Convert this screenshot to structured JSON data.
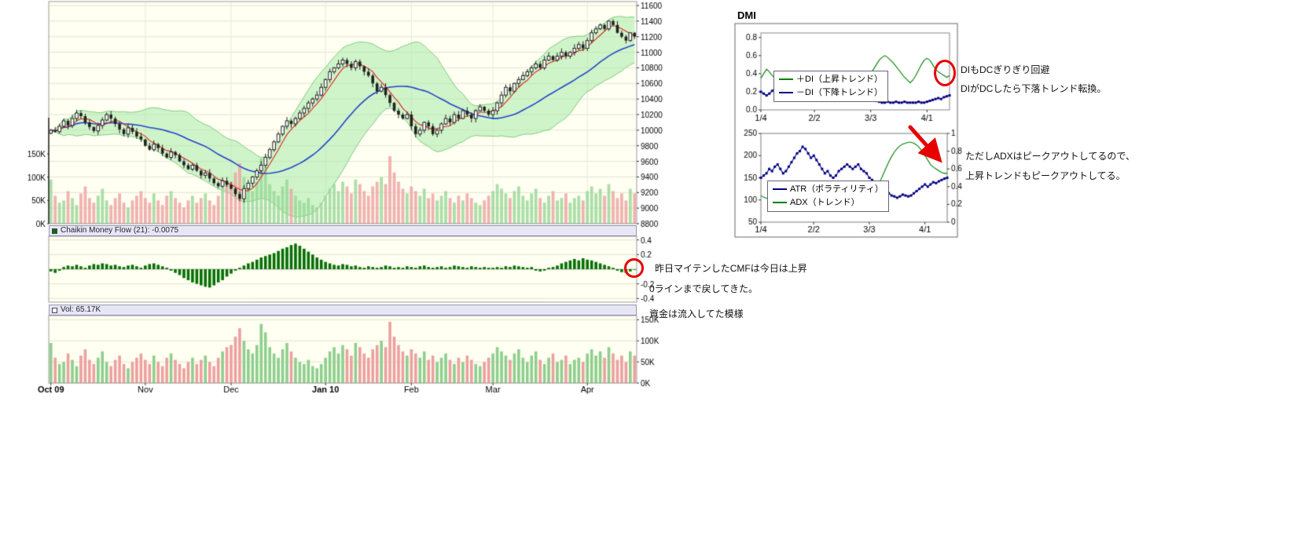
{
  "dmi": {
    "title": "DMI"
  },
  "panels": {
    "cmf": {
      "label": "Chaikin Money Flow (21): -0.0075"
    },
    "vol": {
      "label": "Vol: 65.17K"
    }
  },
  "annotations": {
    "dmi_note_line1": "DIもDCぎりぎり回避",
    "dmi_note_line2": "DIがDCしたら下落トレンド転換。",
    "adx_note_line1": "ただしADXはピークアウトしてるので、",
    "adx_note_line2": "上昇トレンドもピークアウトしてる。",
    "cmf_note_line1": "昨日マイテンしたCMFは今日は上昇",
    "cmf_note_line2": "0ラインまで戻してきた。",
    "cmf_note_line3": "資金は流入してた模様"
  },
  "x_axis": {
    "ticks": [
      {
        "label": "Oct 09",
        "index": 0,
        "bold": true
      },
      {
        "label": "Nov",
        "index": 22,
        "bold": false
      },
      {
        "label": "Dec",
        "index": 42,
        "bold": false
      },
      {
        "label": "Jan 10",
        "index": 64,
        "bold": true
      },
      {
        "label": "Feb",
        "index": 84,
        "bold": false
      },
      {
        "label": "Mar",
        "index": 103,
        "bold": false
      },
      {
        "label": "Apr",
        "index": 125,
        "bold": false
      }
    ]
  },
  "colors": {
    "panel_bg": "#fffff2",
    "grid": "#e4e4d0",
    "band_fill": "rgba(170,235,170,0.55)",
    "band_edge": "#7fcc7f",
    "ma_short": "#dd2222",
    "ma_long": "#2244cc",
    "vol_up": "rgba(150,215,150,0.8)",
    "vol_down": "rgba(238,160,160,0.8)",
    "cmf_bar": "#067006",
    "plus_di": "#008000",
    "minus_di": "#000080",
    "atr": "#000080",
    "adx": "#008000",
    "annotation_red": "#e60000",
    "header_bg": "#e6e6f5"
  },
  "chart_data": [
    {
      "type": "candlestick",
      "name": "price-with-bollinger-and-volume-overlay",
      "price_range": [
        8800,
        11600
      ],
      "price_ticks": [
        11600,
        11400,
        11200,
        11000,
        10800,
        10600,
        10400,
        10200,
        10000,
        9800,
        9600,
        9400,
        9200,
        9000,
        8800
      ],
      "vol_overlay_ticks": [
        {
          "label": "150K",
          "value": 150
        },
        {
          "label": "100K",
          "value": 100
        },
        {
          "label": "50K",
          "value": 50
        },
        {
          "label": "0K",
          "value": 0
        }
      ],
      "closes": [
        10000,
        9980,
        10050,
        10120,
        10060,
        10150,
        10220,
        10180,
        10100,
        10040,
        9990,
        10060,
        10130,
        10200,
        10150,
        10080,
        10010,
        9950,
        10030,
        9980,
        9920,
        9880,
        9800,
        9750,
        9820,
        9770,
        9700,
        9650,
        9720,
        9680,
        9600,
        9550,
        9500,
        9550,
        9480,
        9420,
        9450,
        9380,
        9320,
        9280,
        9350,
        9300,
        9250,
        9180,
        9120,
        9250,
        9320,
        9400,
        9480,
        9550,
        9650,
        9750,
        9850,
        9950,
        10050,
        10120,
        10080,
        10150,
        10220,
        10280,
        10350,
        10400,
        10450,
        10550,
        10650,
        10750,
        10800,
        10850,
        10900,
        10850,
        10800,
        10880,
        10820,
        10750,
        10700,
        10600,
        10500,
        10550,
        10450,
        10350,
        10250,
        10200,
        10150,
        10200,
        10050,
        9950,
        10000,
        10100,
        10050,
        9950,
        10000,
        10080,
        10150,
        10100,
        10200,
        10150,
        10250,
        10200,
        10150,
        10250,
        10300,
        10250,
        10200,
        10250,
        10350,
        10450,
        10550,
        10500,
        10600,
        10650,
        10700,
        10750,
        10800,
        10850,
        10800,
        10900,
        10950,
        10900,
        10950,
        11000,
        10950,
        11000,
        11050,
        11100,
        11050,
        11150,
        11250,
        11300,
        11350,
        11300,
        11400,
        11350,
        11250,
        11200,
        11150,
        11250,
        11200
      ],
      "volumes": [
        95,
        60,
        45,
        50,
        70,
        55,
        40,
        65,
        80,
        55,
        45,
        60,
        75,
        50,
        40,
        55,
        65,
        45,
        35,
        50,
        60,
        70,
        55,
        45,
        65,
        50,
        40,
        60,
        70,
        55,
        45,
        35,
        50,
        60,
        45,
        55,
        65,
        50,
        40,
        60,
        75,
        85,
        90,
        110,
        130,
        100,
        80,
        70,
        90,
        140,
        120,
        85,
        70,
        60,
        80,
        95,
        75,
        60,
        50,
        45,
        55,
        40,
        35,
        45,
        60,
        75,
        85,
        70,
        90,
        80,
        65,
        95,
        85,
        70,
        60,
        80,
        90,
        100,
        85,
        145,
        110,
        90,
        75,
        65,
        80,
        70,
        60,
        75,
        55,
        65,
        50,
        60,
        70,
        55,
        45,
        60,
        50,
        65,
        55,
        45,
        40,
        50,
        60,
        70,
        85,
        75,
        65,
        55,
        70,
        80,
        60,
        50,
        65,
        75,
        55,
        45,
        60,
        70,
        50,
        55,
        65,
        45,
        55,
        60,
        50,
        70,
        80,
        65,
        75,
        60,
        85,
        70,
        55,
        65,
        50,
        75,
        65
      ]
    },
    {
      "type": "bar",
      "name": "chaikin-money-flow",
      "title": "Chaikin Money Flow (21)",
      "last_value": -0.0075,
      "ylim": [
        -0.45,
        0.45
      ],
      "y_ticks": [
        {
          "label": "0.4",
          "value": 0.4
        },
        {
          "label": "0.2",
          "value": 0.2
        },
        {
          "label": "-0.2",
          "value": -0.2
        },
        {
          "label": "-0.4",
          "value": -0.4
        }
      ],
      "values": [
        -0.03,
        -0.05,
        -0.02,
        0.03,
        0.05,
        0.04,
        0.06,
        0.04,
        0.02,
        0.05,
        0.07,
        0.06,
        0.08,
        0.07,
        0.05,
        0.06,
        0.04,
        0.03,
        0.05,
        0.06,
        0.04,
        0.02,
        0.05,
        0.07,
        0.08,
        0.06,
        0.04,
        0.02,
        -0.02,
        -0.05,
        -0.08,
        -0.12,
        -0.15,
        -0.18,
        -0.2,
        -0.22,
        -0.24,
        -0.25,
        -0.22,
        -0.18,
        -0.15,
        -0.1,
        -0.06,
        -0.02,
        0.02,
        0.05,
        0.08,
        0.1,
        0.13,
        0.16,
        0.18,
        0.2,
        0.22,
        0.25,
        0.28,
        0.3,
        0.33,
        0.35,
        0.32,
        0.28,
        0.24,
        0.2,
        0.16,
        0.13,
        0.1,
        0.08,
        0.06,
        0.05,
        0.07,
        0.06,
        0.04,
        0.05,
        0.03,
        0.02,
        0.04,
        0.03,
        0.02,
        0.03,
        0.05,
        0.04,
        0.02,
        0.03,
        0.02,
        0.04,
        0.03,
        0.02,
        0.04,
        0.05,
        0.03,
        0.02,
        0.03,
        0.04,
        0.02,
        0.03,
        0.05,
        0.04,
        0.03,
        0.02,
        0.04,
        0.03,
        0.02,
        0.03,
        0.02,
        0.02,
        0.03,
        0.02,
        0.04,
        0.03,
        0.05,
        0.04,
        0.03,
        0.02,
        0.03,
        -0.02,
        -0.03,
        -0.02,
        0.02,
        0.03,
        0.05,
        0.08,
        0.1,
        0.12,
        0.14,
        0.12,
        0.15,
        0.13,
        0.12,
        0.1,
        0.08,
        0.06,
        0.04,
        0.02,
        -0.02,
        -0.04,
        -0.05,
        -0.03,
        -0.0075
      ]
    },
    {
      "type": "bar",
      "name": "volume-panel",
      "title": "Vol",
      "last_value_label": "65.17K",
      "ylim": [
        0,
        160
      ],
      "y_ticks": [
        {
          "label": "150K",
          "value": 150
        },
        {
          "label": "100K",
          "value": 100
        },
        {
          "label": "50K",
          "value": 50
        },
        {
          "label": "0K",
          "value": 0
        }
      ]
    },
    {
      "type": "line",
      "name": "dmi-di-chart",
      "ymax": 0.85,
      "y_ticks": [
        {
          "label": "0.8",
          "value": 0.8
        },
        {
          "label": "0.6",
          "value": 0.6
        },
        {
          "label": "0.4",
          "value": 0.4
        },
        {
          "label": "0.2",
          "value": 0.2
        },
        {
          "label": "0.0",
          "value": 0
        }
      ],
      "x_ticks": [
        {
          "label": "1/4",
          "index": 0
        },
        {
          "label": "2/2",
          "index": 19
        },
        {
          "label": "3/3",
          "index": 39
        },
        {
          "label": "4/1",
          "index": 59
        }
      ],
      "series": [
        {
          "name": "＋DI（上昇トレンド）",
          "color": "#008000",
          "marker": false,
          "values": [
            0.35,
            0.4,
            0.45,
            0.42,
            0.38,
            0.35,
            0.3,
            0.28,
            0.32,
            0.3,
            0.26,
            0.24,
            0.22,
            0.25,
            0.23,
            0.2,
            0.22,
            0.25,
            0.28,
            0.26,
            0.24,
            0.28,
            0.32,
            0.3,
            0.27,
            0.24,
            0.26,
            0.29,
            0.32,
            0.35,
            0.33,
            0.3,
            0.32,
            0.35,
            0.38,
            0.36,
            0.34,
            0.36,
            0.38,
            0.4,
            0.45,
            0.5,
            0.55,
            0.58,
            0.6,
            0.58,
            0.55,
            0.52,
            0.48,
            0.44,
            0.4,
            0.36,
            0.33,
            0.3,
            0.33,
            0.38,
            0.44,
            0.5,
            0.55,
            0.57,
            0.55,
            0.5,
            0.45,
            0.42,
            0.4,
            0.38,
            0.36,
            0.38
          ]
        },
        {
          "name": "－DI（下降トレンド）",
          "color": "#000080",
          "marker": true,
          "values": [
            0.2,
            0.18,
            0.16,
            0.18,
            0.21,
            0.24,
            0.27,
            0.3,
            0.26,
            0.28,
            0.32,
            0.35,
            0.38,
            0.35,
            0.37,
            0.4,
            0.38,
            0.35,
            0.32,
            0.34,
            0.36,
            0.32,
            0.28,
            0.3,
            0.33,
            0.36,
            0.33,
            0.3,
            0.27,
            0.24,
            0.26,
            0.29,
            0.26,
            0.23,
            0.2,
            0.22,
            0.24,
            0.21,
            0.18,
            0.15,
            0.12,
            0.1,
            0.09,
            0.08,
            0.08,
            0.09,
            0.08,
            0.08,
            0.09,
            0.08,
            0.08,
            0.09,
            0.08,
            0.08,
            0.08,
            0.08,
            0.09,
            0.08,
            0.08,
            0.09,
            0.1,
            0.11,
            0.12,
            0.13,
            0.12,
            0.14,
            0.15,
            0.16
          ]
        }
      ]
    },
    {
      "type": "line",
      "name": "atr-adx-chart",
      "left_ylim": [
        50,
        250
      ],
      "right_ylim": [
        0,
        1
      ],
      "left_ticks": [
        {
          "label": "250",
          "value": 250
        },
        {
          "label": "200",
          "value": 200
        },
        {
          "label": "150",
          "value": 150
        },
        {
          "label": "100",
          "value": 100
        },
        {
          "label": "50",
          "value": 50
        }
      ],
      "right_ticks": [
        {
          "label": "1",
          "value": 1
        },
        {
          "label": "0.8",
          "value": 0.8
        },
        {
          "label": "0.6",
          "value": 0.6
        },
        {
          "label": "0.4",
          "value": 0.4
        },
        {
          "label": "0.2",
          "value": 0.2
        },
        {
          "label": "0",
          "value": 0
        }
      ],
      "x_ticks": [
        {
          "label": "1/4",
          "index": 0
        },
        {
          "label": "2/2",
          "index": 19
        },
        {
          "label": "3/3",
          "index": 39
        },
        {
          "label": "4/1",
          "index": 59
        }
      ],
      "series": [
        {
          "name": "ATR（ボラティリティ）",
          "color": "#000080",
          "marker": true,
          "axis": "left",
          "values": [
            150,
            155,
            160,
            170,
            165,
            175,
            180,
            170,
            160,
            165,
            175,
            185,
            195,
            205,
            210,
            220,
            215,
            205,
            195,
            200,
            190,
            180,
            170,
            160,
            165,
            155,
            150,
            155,
            165,
            170,
            175,
            180,
            175,
            170,
            175,
            180,
            170,
            165,
            160,
            150,
            145,
            140,
            135,
            130,
            125,
            120,
            115,
            110,
            108,
            105,
            108,
            112,
            110,
            108,
            110,
            115,
            120,
            125,
            130,
            135,
            130,
            135,
            140,
            138,
            142,
            145,
            148,
            150
          ]
        },
        {
          "name": "ADX（トレンド）",
          "color": "#008000",
          "marker": false,
          "axis": "right",
          "values": [
            0.3,
            0.28,
            0.27,
            0.26,
            0.25,
            0.26,
            0.27,
            0.28,
            0.27,
            0.26,
            0.27,
            0.29,
            0.31,
            0.33,
            0.35,
            0.37,
            0.38,
            0.37,
            0.36,
            0.35,
            0.34,
            0.33,
            0.31,
            0.3,
            0.29,
            0.28,
            0.27,
            0.26,
            0.25,
            0.24,
            0.23,
            0.22,
            0.22,
            0.23,
            0.24,
            0.25,
            0.24,
            0.23,
            0.22,
            0.23,
            0.28,
            0.34,
            0.4,
            0.47,
            0.54,
            0.61,
            0.68,
            0.74,
            0.79,
            0.83,
            0.86,
            0.88,
            0.89,
            0.9,
            0.9,
            0.89,
            0.87,
            0.84,
            0.8,
            0.75,
            0.7,
            0.65,
            0.62,
            0.6,
            0.58,
            0.56,
            0.55,
            0.55
          ]
        }
      ]
    }
  ]
}
